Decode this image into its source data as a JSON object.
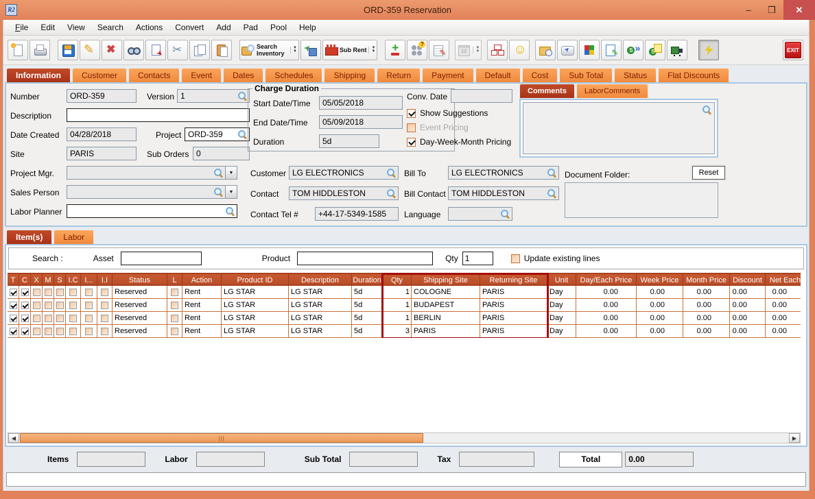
{
  "window": {
    "title": "ORD-359 Reservation",
    "icon_text": "R2",
    "minimize_glyph": "–",
    "maximize_glyph": "❒",
    "close_glyph": "✕"
  },
  "menu": {
    "items": [
      "File",
      "Edit",
      "View",
      "Search",
      "Actions",
      "Convert",
      "Add",
      "Pad",
      "Pool",
      "Help"
    ]
  },
  "toolbar": {
    "buttons": [
      {
        "name": "new-document"
      },
      {
        "name": "print"
      },
      {
        "name": "save"
      },
      {
        "name": "edit"
      },
      {
        "name": "delete"
      },
      {
        "name": "find"
      },
      {
        "name": "copy-to"
      },
      {
        "name": "cut"
      },
      {
        "name": "copy"
      },
      {
        "name": "paste"
      },
      {
        "name": "search-inventory",
        "label": "Search Inventory",
        "dropdown": true
      },
      {
        "name": "convert-order"
      },
      {
        "name": "sub-rent",
        "label": "Sub Rent",
        "dropdown": true
      },
      {
        "name": "add-remove-lines"
      },
      {
        "name": "item-groups"
      },
      {
        "name": "edit-notes"
      },
      {
        "name": "calendar",
        "dropdown": true,
        "disabled": true
      },
      {
        "name": "order-tree"
      },
      {
        "name": "smiley"
      },
      {
        "name": "document-folder"
      },
      {
        "name": "send"
      },
      {
        "name": "inventory-blocks"
      },
      {
        "name": "edit-document"
      },
      {
        "name": "express-forward"
      },
      {
        "name": "express-notes"
      },
      {
        "name": "transport"
      },
      {
        "name": "quick-tools",
        "pressed": true
      },
      {
        "name": "exit",
        "label": "EXIT"
      }
    ]
  },
  "tabs": {
    "active": "Information",
    "items": [
      "Information",
      "Customer",
      "Contacts",
      "Event",
      "Dates",
      "Schedules",
      "Shipping",
      "Return",
      "Payment",
      "Default",
      "Cost",
      "Sub Total",
      "Status",
      "Flat Discounts"
    ]
  },
  "form": {
    "number": {
      "label": "Number",
      "value": "ORD-359"
    },
    "version": {
      "label": "Version",
      "value": "1"
    },
    "description": {
      "label": "Description",
      "value": ""
    },
    "date_created": {
      "label": "Date Created",
      "value": "04/28/2018"
    },
    "project": {
      "label": "Project",
      "value": "ORD-359"
    },
    "site": {
      "label": "Site",
      "value": "PARIS"
    },
    "sub_orders": {
      "label": "Sub Orders",
      "value": "0"
    },
    "project_mgr": {
      "label": "Project Mgr.",
      "value": ""
    },
    "sales_person": {
      "label": "Sales Person",
      "value": ""
    },
    "labor_planner": {
      "label": "Labor Planner",
      "value": ""
    }
  },
  "charge_duration": {
    "title": "Charge Duration",
    "start_label": "Start Date/Time",
    "start_value": "05/05/2018",
    "end_label": "End Date/Time",
    "end_value": "05/09/2018",
    "duration_label": "Duration",
    "duration_value": "5d"
  },
  "conv_date": {
    "label": "Conv. Date",
    "value": ""
  },
  "options": [
    {
      "label": "Show Suggestions",
      "checked": true,
      "enabled": true
    },
    {
      "label": "Event Pricing",
      "checked": false,
      "enabled": false
    },
    {
      "label": "Day-Week-Month Pricing",
      "checked": true,
      "enabled": true
    }
  ],
  "parties": {
    "customer": {
      "label": "Customer",
      "value": "LG ELECTRONICS"
    },
    "contact": {
      "label": "Contact",
      "value": "TOM HIDDLESTON"
    },
    "contact_tel": {
      "label": "Contact Tel #",
      "value": "+44-17-5349-1585"
    },
    "bill_to": {
      "label": "Bill To",
      "value": "LG ELECTRONICS"
    },
    "bill_contact": {
      "label": "Bill Contact",
      "value": "TOM HIDDLESTON"
    },
    "language": {
      "label": "Language",
      "value": ""
    }
  },
  "comments": {
    "tabs": [
      "Comments",
      "LaborComments"
    ],
    "active": "Comments",
    "text": "",
    "document_folder_label": "Document Folder:",
    "reset_label": "Reset",
    "document_folder_text": ""
  },
  "items_section": {
    "tabs": [
      "Item(s)",
      "Labor"
    ],
    "active": "Item(s)",
    "search_label": "Search :",
    "asset_label": "Asset",
    "asset_value": "",
    "product_label": "Product",
    "product_value": "",
    "qty_label": "Qty",
    "qty_value": "1",
    "update_label": "Update existing lines",
    "update_checked": false
  },
  "table": {
    "columns": [
      {
        "label": "T",
        "key": "t",
        "type": "check"
      },
      {
        "label": "C",
        "key": "c",
        "type": "check"
      },
      {
        "label": "X",
        "key": "x",
        "type": "check"
      },
      {
        "label": "M",
        "key": "m",
        "type": "check"
      },
      {
        "label": "S",
        "key": "s",
        "type": "check"
      },
      {
        "label": "I.C",
        "key": "ic",
        "type": "check"
      },
      {
        "label": "I...",
        "key": "idot",
        "type": "check"
      },
      {
        "label": "I.I",
        "key": "ii",
        "type": "check"
      },
      {
        "label": "Status",
        "key": "status",
        "type": "text"
      },
      {
        "label": "L",
        "key": "l",
        "type": "check"
      },
      {
        "label": "Action",
        "key": "action",
        "type": "text"
      },
      {
        "label": "Product ID",
        "key": "product_id",
        "type": "text"
      },
      {
        "label": "Description",
        "key": "description",
        "type": "text"
      },
      {
        "label": "Duration",
        "key": "duration",
        "type": "text"
      },
      {
        "label": "Qty",
        "key": "qty",
        "type": "num"
      },
      {
        "label": "Shipping Site",
        "key": "shipping_site",
        "type": "text"
      },
      {
        "label": "Returning Site",
        "key": "returning_site",
        "type": "text"
      },
      {
        "label": "Unit",
        "key": "unit",
        "type": "text"
      },
      {
        "label": "Day/Each Price",
        "key": "day_each_price",
        "type": "num"
      },
      {
        "label": "Week Price",
        "key": "week_price",
        "type": "num"
      },
      {
        "label": "Month Price",
        "key": "month_price",
        "type": "num"
      },
      {
        "label": "Discount",
        "key": "discount",
        "type": "num"
      },
      {
        "label": "Net Each",
        "key": "net_each",
        "type": "num"
      },
      {
        "label": "Ne",
        "key": "ne",
        "type": "text"
      }
    ],
    "highlight_columns": [
      "qty",
      "shipping_site",
      "returning_site"
    ],
    "rows": [
      {
        "t": true,
        "c": true,
        "x": false,
        "m": false,
        "s": false,
        "ic": false,
        "idot": false,
        "ii": false,
        "status": "Reserved",
        "l": false,
        "action": "Rent",
        "product_id": "LG STAR",
        "description": "LG STAR",
        "duration": "5d",
        "qty": "1",
        "shipping_site": "COLOGNE",
        "returning_site": "PARIS",
        "unit": "Day",
        "day_each_price": "0.00",
        "week_price": "0.00",
        "month_price": "0.00",
        "discount": "0.00",
        "net_each": "0.00",
        "ne": ""
      },
      {
        "t": true,
        "c": true,
        "x": false,
        "m": false,
        "s": false,
        "ic": false,
        "idot": false,
        "ii": false,
        "status": "Reserved",
        "l": false,
        "action": "Rent",
        "product_id": "LG STAR",
        "description": "LG STAR",
        "duration": "5d",
        "qty": "1",
        "shipping_site": "BUDAPEST",
        "returning_site": "PARIS",
        "unit": "Day",
        "day_each_price": "0.00",
        "week_price": "0.00",
        "month_price": "0.00",
        "discount": "0.00",
        "net_each": "0.00",
        "ne": ""
      },
      {
        "t": true,
        "c": true,
        "x": false,
        "m": false,
        "s": false,
        "ic": false,
        "idot": false,
        "ii": false,
        "status": "Reserved",
        "l": false,
        "action": "Rent",
        "product_id": "LG STAR",
        "description": "LG STAR",
        "duration": "5d",
        "qty": "1",
        "shipping_site": "BERLIN",
        "returning_site": "PARIS",
        "unit": "Day",
        "day_each_price": "0.00",
        "week_price": "0.00",
        "month_price": "0.00",
        "discount": "0.00",
        "net_each": "0.00",
        "ne": ""
      },
      {
        "t": true,
        "c": true,
        "x": false,
        "m": false,
        "s": false,
        "ic": false,
        "idot": false,
        "ii": false,
        "status": "Reserved",
        "l": false,
        "action": "Rent",
        "product_id": "LG STAR",
        "description": "LG STAR",
        "duration": "5d",
        "qty": "3",
        "shipping_site": "PARIS",
        "returning_site": "PARIS",
        "unit": "Day",
        "day_each_price": "0.00",
        "week_price": "0.00",
        "month_price": "0.00",
        "discount": "0.00",
        "net_each": "0.00",
        "ne": ""
      }
    ]
  },
  "totals": {
    "items_label": "Items",
    "items_value": "",
    "labor_label": "Labor",
    "labor_value": "",
    "sub_total_label": "Sub Total",
    "sub_total_value": "",
    "tax_label": "Tax",
    "tax_value": "",
    "total_label": "Total",
    "total_value": "0.00"
  }
}
